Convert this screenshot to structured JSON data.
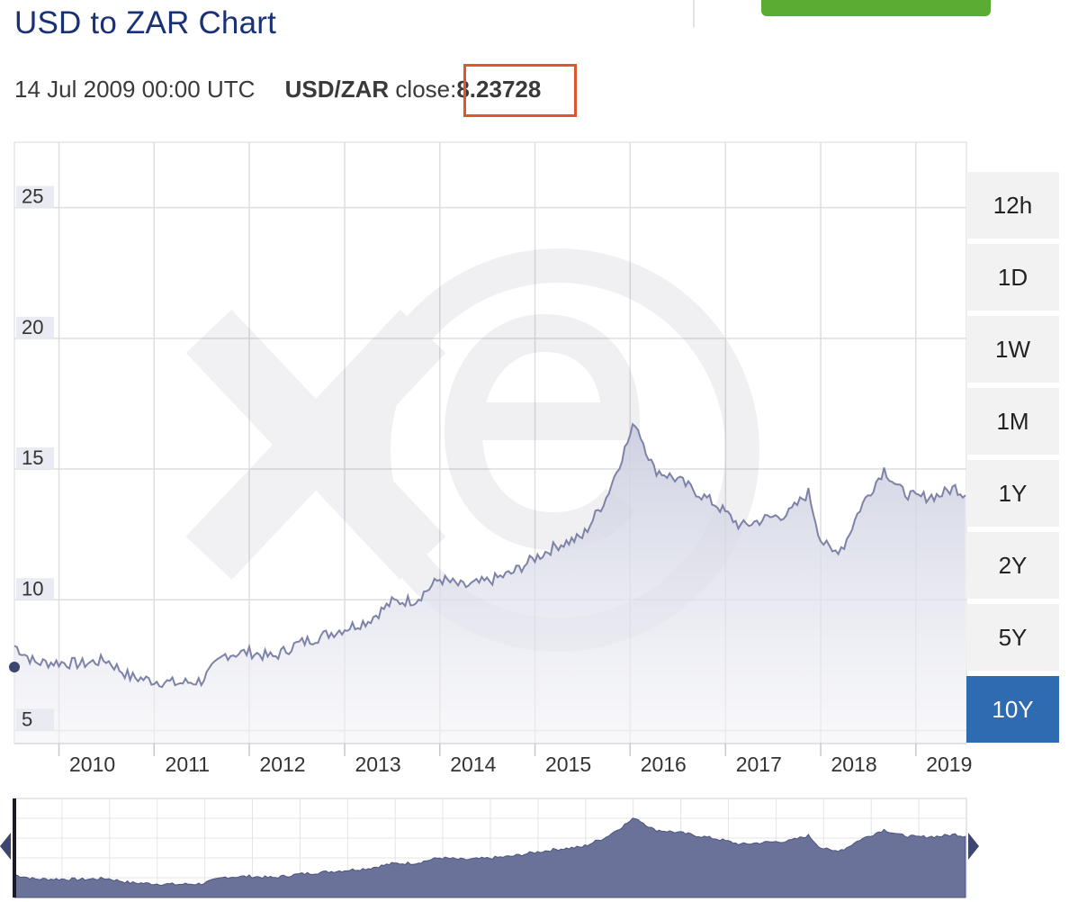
{
  "header": {
    "title": "USD to ZAR Chart"
  },
  "readout": {
    "date": "14 Jul 2009 00:00 UTC",
    "pair": "USD/ZAR",
    "close_label": " close:",
    "close_value": "8.23728"
  },
  "colors": {
    "title": "#1a3175",
    "accent_green": "#5aad32",
    "highlight_box": "#e0552f",
    "active_range": "#2f6bb0",
    "line": "#7d83a8",
    "navigator_fill": "#6b7299"
  },
  "range_buttons": [
    {
      "label": "12h",
      "active": false
    },
    {
      "label": "1D",
      "active": false
    },
    {
      "label": "1W",
      "active": false
    },
    {
      "label": "1M",
      "active": false
    },
    {
      "label": "1Y",
      "active": false
    },
    {
      "label": "2Y",
      "active": false
    },
    {
      "label": "5Y",
      "active": false
    },
    {
      "label": "10Y",
      "active": true
    }
  ],
  "chart_data": {
    "type": "area",
    "series": [
      {
        "values_by_date": [
          [
            "2009-07-14",
            8.24
          ],
          [
            "2009-10-01",
            7.6
          ],
          [
            "2010-01-01",
            7.6
          ],
          [
            "2010-04-01",
            7.55
          ],
          [
            "2010-07-01",
            7.7
          ],
          [
            "2010-10-01",
            7.05
          ],
          [
            "2011-01-01",
            6.9
          ],
          [
            "2011-04-01",
            6.8
          ],
          [
            "2011-07-01",
            6.9
          ],
          [
            "2011-10-01",
            7.9
          ],
          [
            "2012-01-01",
            8.0
          ],
          [
            "2012-04-01",
            7.8
          ],
          [
            "2012-07-01",
            8.3
          ],
          [
            "2012-10-01",
            8.6
          ],
          [
            "2013-01-01",
            8.9
          ],
          [
            "2013-04-01",
            9.2
          ],
          [
            "2013-07-01",
            9.9
          ],
          [
            "2013-10-01",
            10.0
          ],
          [
            "2014-01-01",
            10.8
          ],
          [
            "2014-04-01",
            10.5
          ],
          [
            "2014-07-01",
            10.7
          ],
          [
            "2014-10-01",
            11.0
          ],
          [
            "2015-01-01",
            11.6
          ],
          [
            "2015-04-01",
            12.1
          ],
          [
            "2015-07-01",
            12.4
          ],
          [
            "2015-10-01",
            13.9
          ],
          [
            "2016-01-21",
            16.8
          ],
          [
            "2016-04-01",
            15.0
          ],
          [
            "2016-07-01",
            14.6
          ],
          [
            "2016-10-01",
            14.0
          ],
          [
            "2016-12-01",
            13.6
          ],
          [
            "2017-03-01",
            12.8
          ],
          [
            "2017-06-01",
            13.1
          ],
          [
            "2017-09-01",
            13.3
          ],
          [
            "2017-11-15",
            14.1
          ],
          [
            "2018-01-01",
            12.3
          ],
          [
            "2018-02-15",
            11.8
          ],
          [
            "2018-04-01",
            12.1
          ],
          [
            "2018-06-01",
            13.5
          ],
          [
            "2018-09-01",
            15.0
          ],
          [
            "2018-11-01",
            14.2
          ],
          [
            "2019-01-01",
            13.9
          ],
          [
            "2019-04-01",
            14.0
          ],
          [
            "2019-06-01",
            14.3
          ],
          [
            "2019-07-10",
            14.0
          ]
        ]
      }
    ],
    "x_ticks": [
      "2010",
      "2011",
      "2012",
      "2013",
      "2014",
      "2015",
      "2016",
      "2017",
      "2018",
      "2019"
    ],
    "y_ticks": [
      "5",
      "10",
      "15",
      "20",
      "25"
    ],
    "xlim": [
      "2009-07-14",
      "2019-07-14"
    ],
    "ylim": [
      4.5,
      27.5
    ],
    "grid": true,
    "watermark": "xe-logo"
  }
}
